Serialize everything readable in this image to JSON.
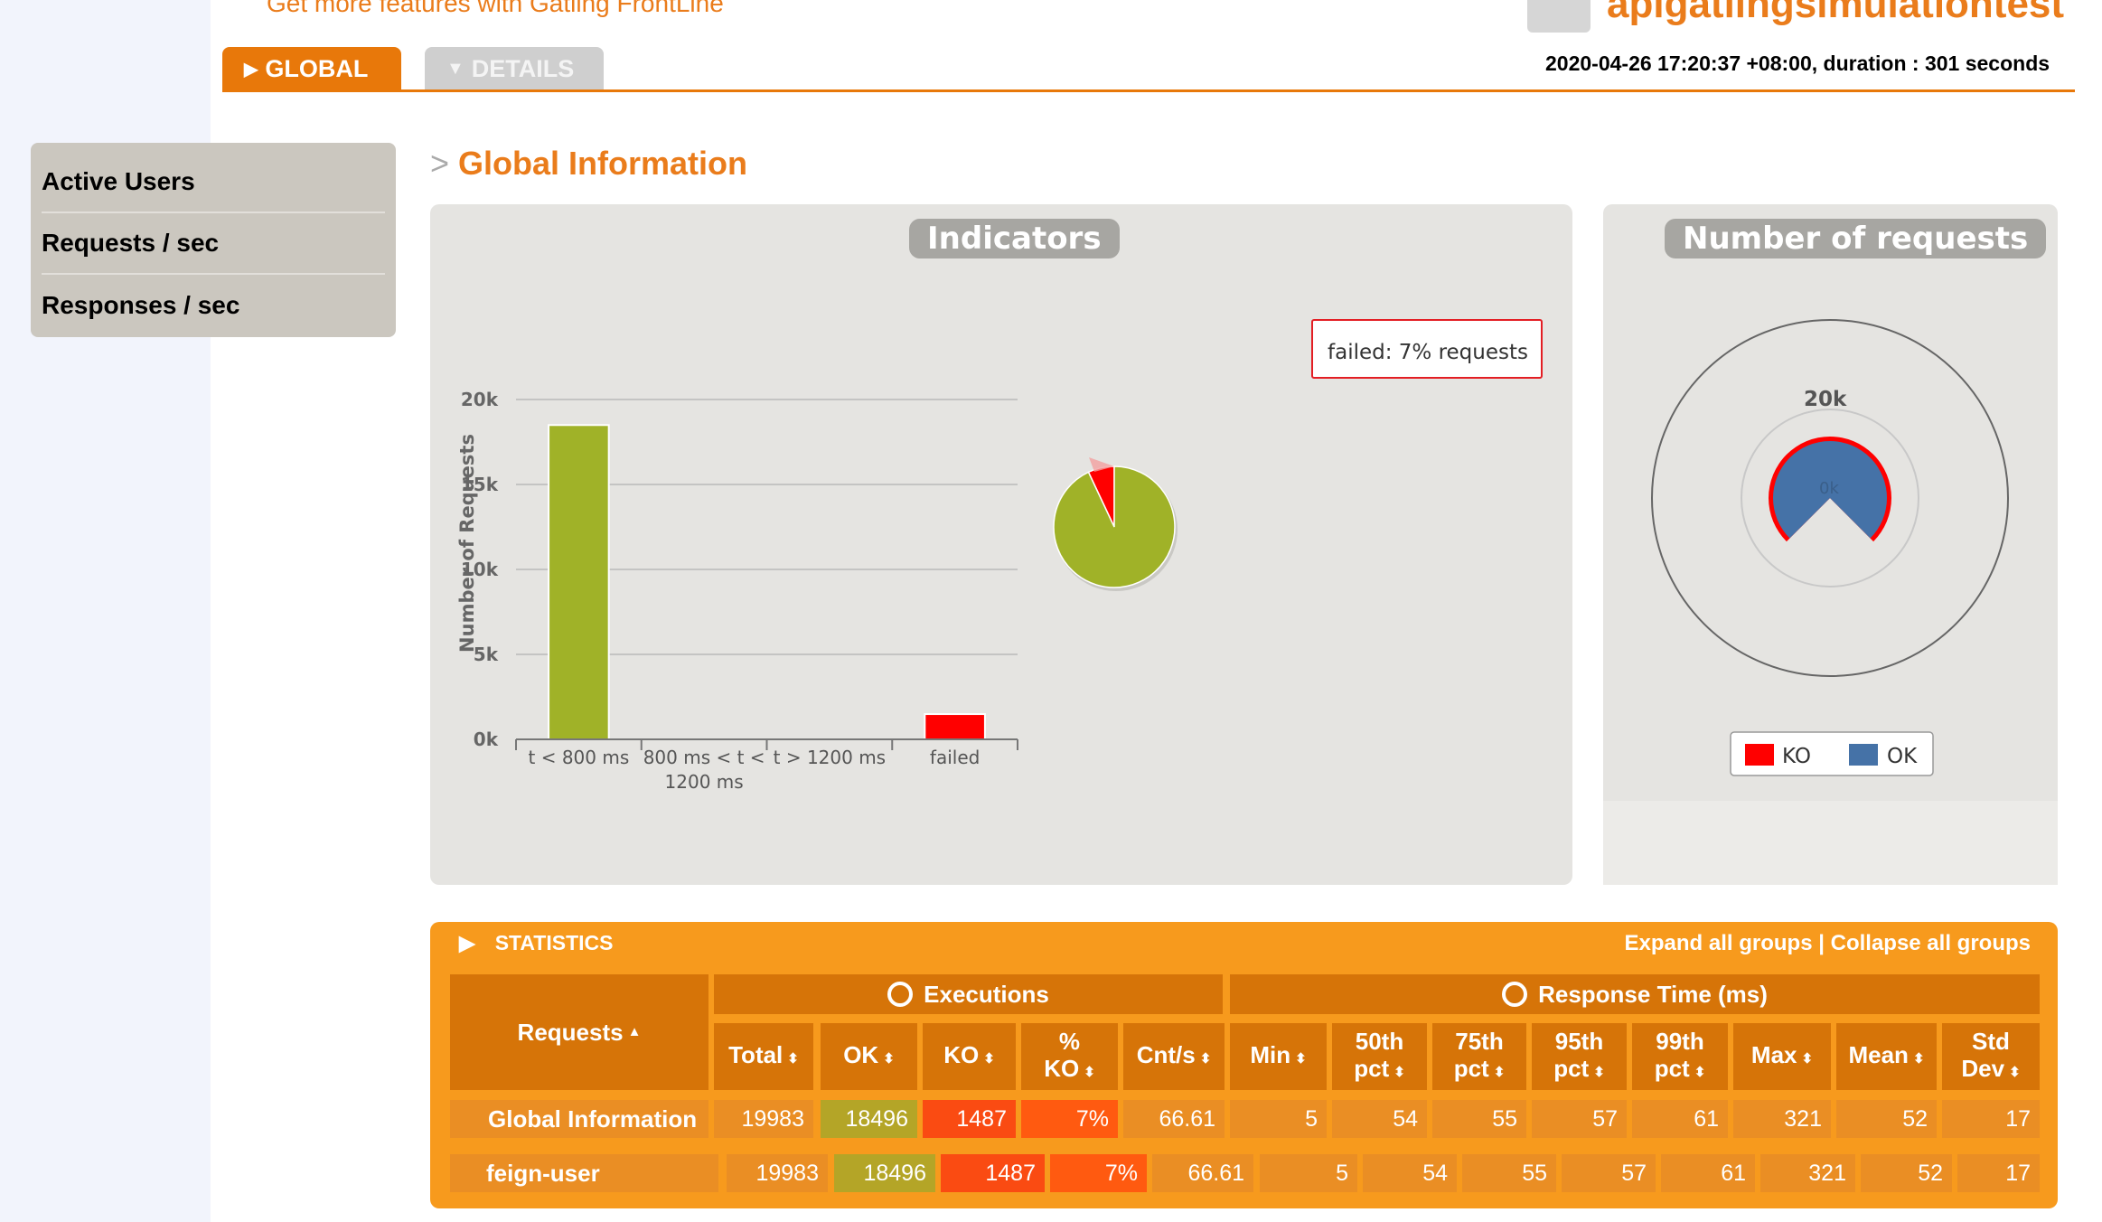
{
  "header": {
    "promo_text": "Get more features with Gatling FrontLine",
    "simulation_name": "apigatlingsimulationtest",
    "run_info": "2020-04-26 17:20:37 +08:00, duration : 301 seconds"
  },
  "tabs": [
    {
      "label": "GLOBAL",
      "active": true
    },
    {
      "label": "DETAILS",
      "active": false
    }
  ],
  "sidebar": {
    "items": [
      {
        "label": "Active Users"
      },
      {
        "label": "Requests / sec"
      },
      {
        "label": "Responses / sec"
      }
    ]
  },
  "section": {
    "title": "Global Information",
    "arrow": ">"
  },
  "indicators": {
    "title": "Indicators",
    "tooltip": "failed: 7% requests"
  },
  "requests_panel": {
    "title": "Number of requests",
    "gauge_label": "20k",
    "gauge_inner_label": "0k",
    "legend": [
      "KO",
      "OK"
    ]
  },
  "colors": {
    "accent": "#ea7c1b",
    "ok_green": "#a0b228",
    "ko_red": "#ff0000",
    "ok_blue": "#4572a7",
    "panel_bg": "#e5e4e1"
  },
  "chart_data": [
    {
      "type": "bar",
      "title": "Indicators",
      "ylabel": "Number of Requests",
      "categories": [
        "t < 800 ms",
        "800 ms < t < 1200 ms",
        "t > 1200 ms",
        "failed"
      ],
      "values": [
        18496,
        0,
        0,
        1487
      ],
      "yticks": [
        "0k",
        "5k",
        "10k",
        "15k",
        "20k"
      ],
      "ylim": [
        0,
        20000
      ],
      "colors": [
        "#a0b228",
        "#ffa500",
        "#ff6600",
        "#ff0000"
      ]
    },
    {
      "type": "pie",
      "slices": [
        {
          "label": "t < 800 ms",
          "value": 93,
          "color": "#a0b228"
        },
        {
          "label": "failed",
          "value": 7,
          "color": "#ff0000"
        }
      ]
    }
  ],
  "statistics": {
    "title": "STATISTICS",
    "expand_all": "Expand all groups",
    "separator": "|",
    "collapse_all": "Collapse all groups",
    "requests_header": "Requests",
    "executions_header": "Executions",
    "response_time_header": "Response Time (ms)",
    "columns": [
      {
        "l1": "Total",
        "l2": ""
      },
      {
        "l1": "OK",
        "l2": ""
      },
      {
        "l1": "KO",
        "l2": ""
      },
      {
        "l1": "%",
        "l2": "KO"
      },
      {
        "l1": "Cnt/s",
        "l2": ""
      },
      {
        "l1": "Min",
        "l2": ""
      },
      {
        "l1": "50th",
        "l2": "pct"
      },
      {
        "l1": "75th",
        "l2": "pct"
      },
      {
        "l1": "95th",
        "l2": "pct"
      },
      {
        "l1": "99th",
        "l2": "pct"
      },
      {
        "l1": "Max",
        "l2": ""
      },
      {
        "l1": "Mean",
        "l2": ""
      },
      {
        "l1": "Std",
        "l2": "Dev"
      }
    ],
    "rows": [
      {
        "name": "Global Information",
        "values": [
          "19983",
          "18496",
          "1487",
          "7%",
          "66.61",
          "5",
          "54",
          "55",
          "57",
          "61",
          "321",
          "52",
          "17"
        ]
      },
      {
        "name": "feign-user",
        "values": [
          "19983",
          "18496",
          "1487",
          "7%",
          "66.61",
          "5",
          "54",
          "55",
          "57",
          "61",
          "321",
          "52",
          "17"
        ]
      }
    ]
  }
}
